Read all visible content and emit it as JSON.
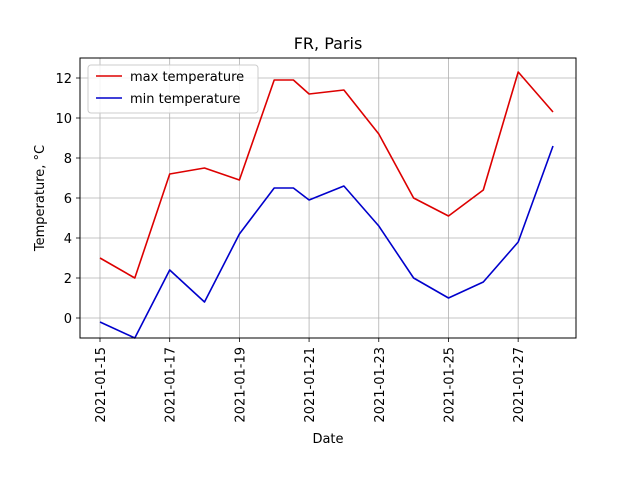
{
  "chart_data": {
    "type": "line",
    "title": "FR, Paris",
    "xlabel": "Date",
    "ylabel": "Temperature, °C",
    "x": [
      "2021-01-15",
      "2021-01-16",
      "2021-01-17",
      "2021-01-18",
      "2021-01-19",
      "2021-01-20",
      "2021-01-21",
      "2021-01-22",
      "2021-01-23",
      "2021-01-24",
      "2021-01-25",
      "2021-01-26",
      "2021-01-27",
      "2021-01-28"
    ],
    "x_tick_labels": [
      "2021-01-15",
      "2021-01-17",
      "2021-01-19",
      "2021-01-21",
      "2021-01-23",
      "2021-01-25",
      "2021-01-27"
    ],
    "xlim": [
      "2021-01-15",
      "2021-01-28"
    ],
    "ylim": [
      -1,
      13
    ],
    "y_ticks": [
      0,
      2,
      4,
      6,
      8,
      10,
      12
    ],
    "grid": true,
    "legend_placement": "upper-left",
    "series": [
      {
        "name": "max temperature",
        "color": "#dd0000",
        "x": [
          "2021-01-15",
          "2021-01-16",
          "2021-01-17",
          "2021-01-18",
          "2021-01-19",
          "2021-01-20",
          "2021-01-20",
          "2021-01-21",
          "2021-01-22",
          "2021-01-23",
          "2021-01-24",
          "2021-01-25",
          "2021-01-26",
          "2021-01-27",
          "2021-01-28"
        ],
        "values": [
          3.0,
          2.0,
          7.2,
          7.5,
          6.9,
          11.9,
          11.9,
          11.2,
          11.4,
          9.2,
          6.0,
          5.1,
          6.4,
          12.3,
          10.3
        ]
      },
      {
        "name": "min temperature",
        "color": "#0000cc",
        "x": [
          "2021-01-15",
          "2021-01-16",
          "2021-01-17",
          "2021-01-18",
          "2021-01-19",
          "2021-01-20",
          "2021-01-20",
          "2021-01-21",
          "2021-01-22",
          "2021-01-23",
          "2021-01-24",
          "2021-01-25",
          "2021-01-26",
          "2021-01-27",
          "2021-01-28"
        ],
        "values": [
          -0.2,
          -1.0,
          2.4,
          0.8,
          4.2,
          6.5,
          6.5,
          5.9,
          6.6,
          4.6,
          2.0,
          1.0,
          1.8,
          3.8,
          8.6
        ]
      }
    ]
  }
}
